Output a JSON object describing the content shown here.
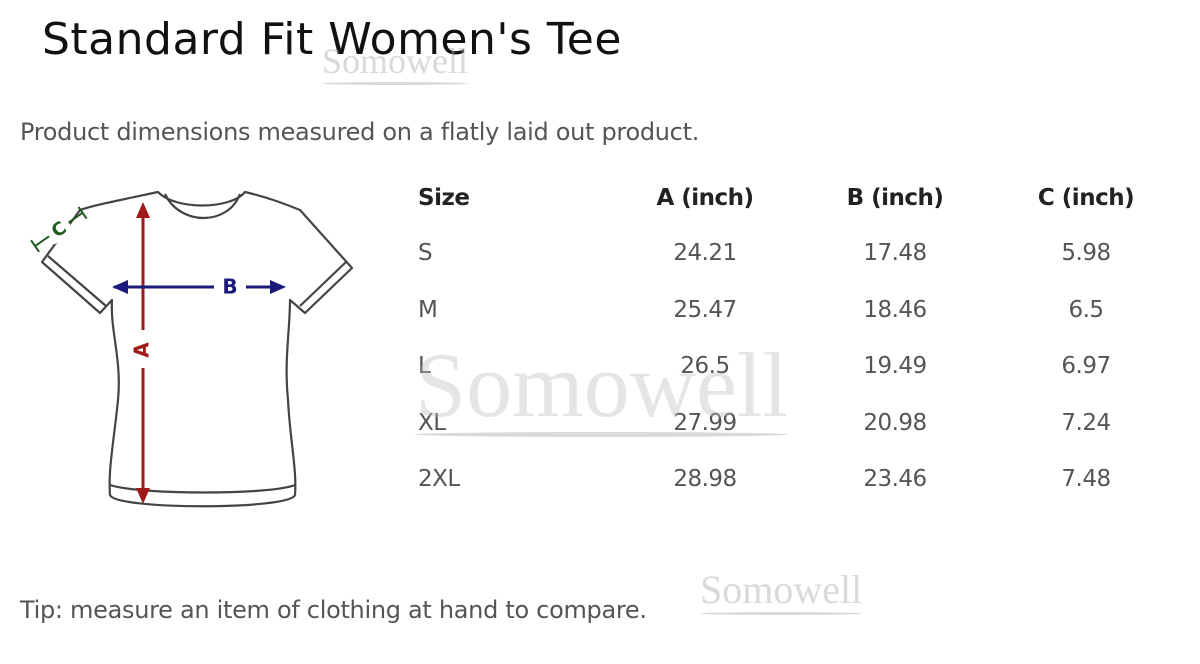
{
  "title": "Standard Fit Women's Tee",
  "subtitle": "Product dimensions measured on a flatly laid out product.",
  "tip": "Tip: measure an item of clothing at hand to compare.",
  "diagram": {
    "labels": {
      "a": "A",
      "b": "B",
      "c": "C"
    },
    "colors": {
      "a": "#a01818",
      "b": "#1a1a7a",
      "c": "#1f5a1f",
      "outline": "#444444"
    }
  },
  "table": {
    "headers": [
      "Size",
      "A (inch)",
      "B (inch)",
      "C (inch)"
    ],
    "rows": [
      [
        "S",
        "24.21",
        "17.48",
        "5.98"
      ],
      [
        "M",
        "25.47",
        "18.46",
        "6.5"
      ],
      [
        "L",
        "26.5",
        "19.49",
        "6.97"
      ],
      [
        "XL",
        "27.99",
        "20.98",
        "7.24"
      ],
      [
        "2XL",
        "28.98",
        "23.46",
        "7.48"
      ]
    ]
  },
  "watermark": "Somowell"
}
